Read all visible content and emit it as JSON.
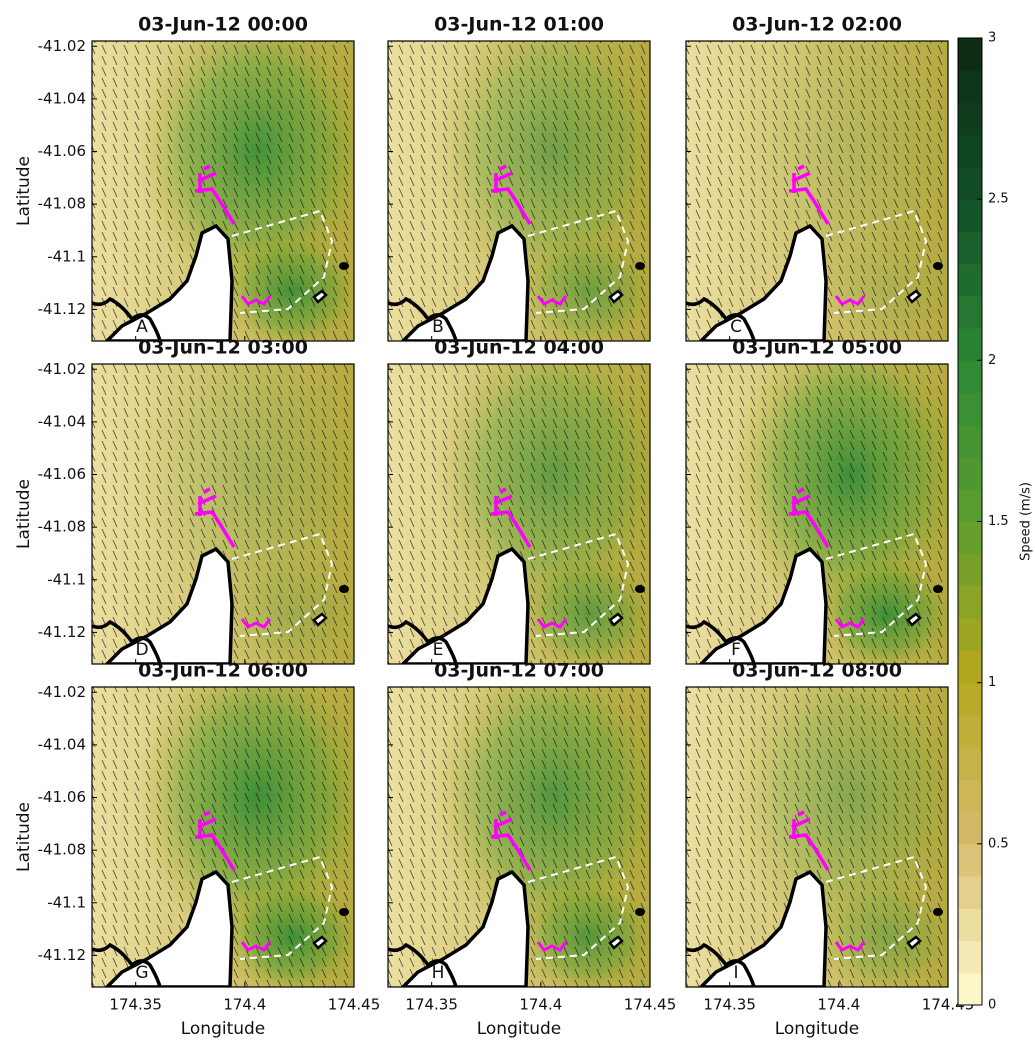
{
  "panels": [
    {
      "title": "03-Jun-12 00:00",
      "label": "A"
    },
    {
      "title": "03-Jun-12 01:00",
      "label": "B"
    },
    {
      "title": "03-Jun-12 02:00",
      "label": "C"
    },
    {
      "title": "03-Jun-12 03:00",
      "label": "D"
    },
    {
      "title": "03-Jun-12 04:00",
      "label": "E"
    },
    {
      "title": "03-Jun-12 05:00",
      "label": "F"
    },
    {
      "title": "03-Jun-12 06:00",
      "label": "G"
    },
    {
      "title": "03-Jun-12 07:00",
      "label": "H"
    },
    {
      "title": "03-Jun-12 08:00",
      "label": "I"
    }
  ],
  "x_axis": {
    "label": "Longitude",
    "lim": [
      174.33,
      174.45
    ],
    "ticks": [
      174.35,
      174.4,
      174.45
    ]
  },
  "y_axis": {
    "label": "Latitude",
    "lim": [
      -41.132,
      -41.018
    ],
    "ticks": [
      -41.02,
      -41.04,
      -41.06,
      -41.08,
      -41.1,
      -41.12
    ]
  },
  "colorbar": {
    "label": "Speed (m/s)",
    "lim": [
      0,
      3
    ],
    "ticks": [
      0,
      0.5,
      1,
      1.5,
      2,
      2.5,
      3
    ]
  }
}
